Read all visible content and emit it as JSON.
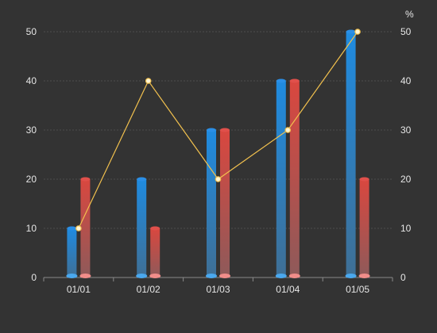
{
  "chart_data": {
    "type": "bar",
    "categories": [
      "01/01",
      "01/02",
      "01/03",
      "01/04",
      "01/05"
    ],
    "series": [
      {
        "type": "bar",
        "axis": "left",
        "color": "#2a86d8",
        "values": [
          10,
          20,
          30,
          40,
          50
        ]
      },
      {
        "type": "bar",
        "axis": "left",
        "color": "#d9504e",
        "values": [
          20,
          10,
          30,
          40,
          20
        ]
      },
      {
        "type": "line",
        "axis": "right",
        "color": "#f2c14e",
        "values": [
          10,
          40,
          20,
          30,
          50
        ]
      }
    ],
    "y_left": {
      "min": 0,
      "max": 50,
      "ticks": [
        0,
        10,
        20,
        30,
        40,
        50
      ]
    },
    "y_right": {
      "min": 0,
      "max": 50,
      "ticks": [
        0,
        10,
        20,
        30,
        40,
        50
      ],
      "unit": "%"
    },
    "grid": true,
    "legend": "none",
    "title": "",
    "xlabel": "",
    "ylabel": ""
  }
}
